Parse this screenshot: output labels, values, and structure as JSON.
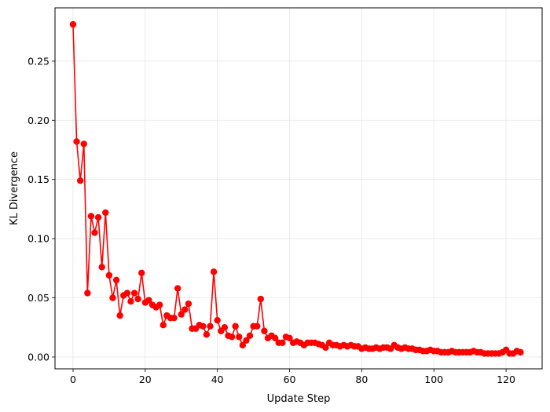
{
  "chart_data": {
    "type": "line",
    "title": "",
    "xlabel": "Update Step",
    "ylabel": "KL Divergence",
    "xlim": [
      -5,
      130
    ],
    "ylim": [
      -0.01,
      0.295
    ],
    "grid": true,
    "marker": "circle",
    "color": "#ff0000",
    "xticks": [
      0,
      20,
      40,
      60,
      80,
      100,
      120
    ],
    "yticks": [
      0.0,
      0.05,
      0.1,
      0.15,
      0.2,
      0.25
    ],
    "xtick_labels": [
      "0",
      "20",
      "40",
      "60",
      "80",
      "100",
      "120"
    ],
    "ytick_labels": [
      "0.00",
      "0.05",
      "0.10",
      "0.15",
      "0.20",
      "0.25"
    ],
    "series": [
      {
        "x": [
          0,
          1,
          2,
          3,
          4,
          5,
          6,
          7,
          8,
          9,
          10,
          11,
          12,
          13,
          14,
          15,
          16,
          17,
          18,
          19,
          20,
          21,
          22,
          23,
          24,
          25,
          26,
          27,
          28,
          29,
          30,
          31,
          32,
          33,
          34,
          35,
          36,
          37,
          38,
          39,
          40,
          41,
          42,
          43,
          44,
          45,
          46,
          47,
          48,
          49,
          50,
          51,
          52,
          53,
          54,
          55,
          56,
          57,
          58,
          59,
          60,
          61,
          62,
          63,
          64,
          65,
          66,
          67,
          68,
          69,
          70,
          71,
          72,
          73,
          74,
          75,
          76,
          77,
          78,
          79,
          80,
          81,
          82,
          83,
          84,
          85,
          86,
          87,
          88,
          89,
          90,
          91,
          92,
          93,
          94,
          95,
          96,
          97,
          98,
          99,
          100,
          101,
          102,
          103,
          104,
          105,
          106,
          107,
          108,
          109,
          110,
          111,
          112,
          113,
          114,
          115,
          116,
          117,
          118,
          119,
          120,
          121,
          122,
          123,
          124
        ],
        "values": [
          0.281,
          0.182,
          0.149,
          0.18,
          0.054,
          0.119,
          0.105,
          0.118,
          0.076,
          0.122,
          0.069,
          0.05,
          0.065,
          0.035,
          0.052,
          0.054,
          0.047,
          0.054,
          0.049,
          0.071,
          0.046,
          0.048,
          0.044,
          0.042,
          0.044,
          0.027,
          0.035,
          0.033,
          0.033,
          0.058,
          0.036,
          0.04,
          0.045,
          0.024,
          0.024,
          0.027,
          0.026,
          0.019,
          0.026,
          0.072,
          0.031,
          0.022,
          0.025,
          0.018,
          0.017,
          0.026,
          0.017,
          0.01,
          0.014,
          0.018,
          0.026,
          0.026,
          0.049,
          0.022,
          0.016,
          0.018,
          0.016,
          0.012,
          0.012,
          0.017,
          0.016,
          0.012,
          0.013,
          0.012,
          0.01,
          0.012,
          0.012,
          0.012,
          0.011,
          0.01,
          0.008,
          0.012,
          0.01,
          0.01,
          0.009,
          0.01,
          0.009,
          0.01,
          0.009,
          0.009,
          0.007,
          0.008,
          0.007,
          0.007,
          0.008,
          0.007,
          0.008,
          0.008,
          0.007,
          0.01,
          0.008,
          0.007,
          0.008,
          0.007,
          0.007,
          0.006,
          0.006,
          0.005,
          0.005,
          0.006,
          0.005,
          0.005,
          0.004,
          0.004,
          0.004,
          0.005,
          0.004,
          0.004,
          0.004,
          0.004,
          0.004,
          0.005,
          0.004,
          0.004,
          0.003,
          0.003,
          0.003,
          0.003,
          0.003,
          0.004,
          0.006,
          0.003,
          0.003,
          0.005,
          0.004
        ]
      }
    ]
  }
}
